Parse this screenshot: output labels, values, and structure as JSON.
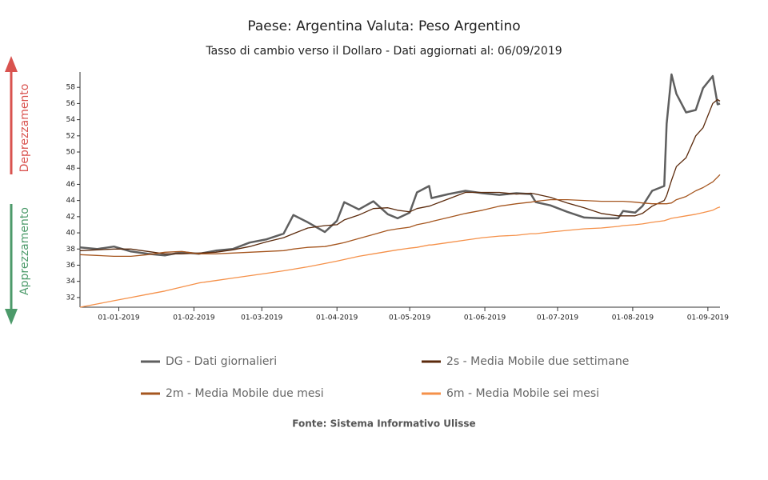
{
  "chart_data": {
    "type": "line",
    "title": "Paese: Argentina Valuta: Peso Argentino",
    "subtitle": "Tasso di cambio verso il Dollaro - Dati aggiornati al: 06/09/2019",
    "annotations": [
      "Deprezzamento",
      "Apprezzamento"
    ],
    "source": "Fonte: Sistema Informativo Ulisse",
    "x": [
      "2018-12-16",
      "2018-12-23",
      "2018-12-30",
      "2019-01-06",
      "2019-01-13",
      "2019-01-20",
      "2019-01-27",
      "2019-02-03",
      "2019-02-10",
      "2019-02-17",
      "2019-02-24",
      "2019-03-03",
      "2019-03-10",
      "2019-03-14",
      "2019-03-20",
      "2019-03-27",
      "2019-04-01",
      "2019-04-04",
      "2019-04-10",
      "2019-04-16",
      "2019-04-22",
      "2019-04-26",
      "2019-05-01",
      "2019-05-04",
      "2019-05-09",
      "2019-05-10",
      "2019-05-17",
      "2019-05-24",
      "2019-05-31",
      "2019-06-07",
      "2019-06-14",
      "2019-06-20",
      "2019-06-22",
      "2019-06-28",
      "2019-07-05",
      "2019-07-12",
      "2019-07-19",
      "2019-07-26",
      "2019-07-28",
      "2019-08-02",
      "2019-08-05",
      "2019-08-09",
      "2019-08-14",
      "2019-08-15",
      "2019-08-17",
      "2019-08-19",
      "2019-08-23",
      "2019-08-27",
      "2019-08-30",
      "2019-09-03",
      "2019-09-05",
      "2019-09-06"
    ],
    "series": [
      {
        "name": "DG - Dati giornalieri",
        "color": "#5f5f5f",
        "width": 2.5,
        "values": [
          38.2,
          38.0,
          38.3,
          37.7,
          37.4,
          37.2,
          37.6,
          37.4,
          37.8,
          38.0,
          38.8,
          39.2,
          39.9,
          42.2,
          41.3,
          40.1,
          41.5,
          43.8,
          42.9,
          43.9,
          42.3,
          41.8,
          42.5,
          45.0,
          45.8,
          44.3,
          44.8,
          45.2,
          44.9,
          44.7,
          44.9,
          44.8,
          43.8,
          43.4,
          42.6,
          41.9,
          41.8,
          41.8,
          42.7,
          42.5,
          43.3,
          45.2,
          45.8,
          53.5,
          59.6,
          57.2,
          54.9,
          55.2,
          57.9,
          59.4,
          55.9,
          56.0
        ]
      },
      {
        "name": "2s - Media Mobile due settimane",
        "color": "#5b2a0c",
        "width": 1.3,
        "values": [
          37.8,
          37.9,
          38.0,
          38.0,
          37.7,
          37.4,
          37.4,
          37.5,
          37.6,
          37.9,
          38.3,
          38.9,
          39.4,
          39.9,
          40.6,
          40.9,
          41.0,
          41.6,
          42.2,
          43.0,
          43.1,
          42.8,
          42.6,
          43.0,
          43.3,
          43.4,
          44.2,
          45.0,
          45.0,
          45.0,
          44.8,
          44.9,
          44.8,
          44.4,
          43.7,
          43.1,
          42.4,
          42.1,
          42.1,
          42.1,
          42.4,
          43.3,
          44.0,
          44.6,
          46.5,
          48.2,
          49.3,
          52.0,
          53.0,
          56.0,
          56.5,
          56.3
        ]
      },
      {
        "name": "2m - Media Mobile due mesi",
        "color": "#a5561f",
        "width": 1.3,
        "values": [
          37.3,
          37.2,
          37.1,
          37.1,
          37.3,
          37.6,
          37.7,
          37.4,
          37.4,
          37.5,
          37.6,
          37.7,
          37.8,
          38.0,
          38.2,
          38.3,
          38.6,
          38.8,
          39.3,
          39.8,
          40.3,
          40.5,
          40.7,
          41.0,
          41.3,
          41.4,
          41.9,
          42.4,
          42.8,
          43.3,
          43.6,
          43.8,
          43.9,
          44.1,
          44.1,
          44.0,
          43.9,
          43.9,
          43.9,
          43.8,
          43.7,
          43.6,
          43.6,
          43.6,
          43.7,
          44.1,
          44.5,
          45.2,
          45.6,
          46.3,
          46.9,
          47.2
        ]
      },
      {
        "name": "6m - Media Mobile sei mesi",
        "color": "#f5914a",
        "width": 1.3,
        "values": [
          30.8,
          31.2,
          31.6,
          32.0,
          32.4,
          32.8,
          33.3,
          33.8,
          34.1,
          34.4,
          34.7,
          35.0,
          35.3,
          35.5,
          35.8,
          36.2,
          36.5,
          36.7,
          37.1,
          37.4,
          37.7,
          37.9,
          38.1,
          38.2,
          38.5,
          38.5,
          38.8,
          39.1,
          39.4,
          39.6,
          39.7,
          39.9,
          39.9,
          40.1,
          40.3,
          40.5,
          40.6,
          40.8,
          40.9,
          41.0,
          41.1,
          41.3,
          41.5,
          41.6,
          41.8,
          41.9,
          42.1,
          42.3,
          42.5,
          42.8,
          43.1,
          43.2
        ]
      }
    ],
    "xlim": [
      "2018-12-16",
      "2019-09-06"
    ],
    "xticks": [
      {
        "value": "2019-01-01",
        "label": "01-01-2019"
      },
      {
        "value": "2019-02-01",
        "label": "01-02-2019"
      },
      {
        "value": "2019-03-01",
        "label": "01-03-2019"
      },
      {
        "value": "2019-04-01",
        "label": "01-04-2019"
      },
      {
        "value": "2019-05-01",
        "label": "01-05-2019"
      },
      {
        "value": "2019-06-01",
        "label": "01-06-2019"
      },
      {
        "value": "2019-07-01",
        "label": "01-07-2019"
      },
      {
        "value": "2019-08-01",
        "label": "01-08-2019"
      },
      {
        "value": "2019-09-01",
        "label": "01-09-2019"
      }
    ],
    "ylim": [
      30.8,
      59.9
    ],
    "yticks": [
      32,
      34,
      36,
      38,
      40,
      42,
      44,
      46,
      48,
      50,
      52,
      54,
      56,
      58
    ],
    "grid": false
  }
}
